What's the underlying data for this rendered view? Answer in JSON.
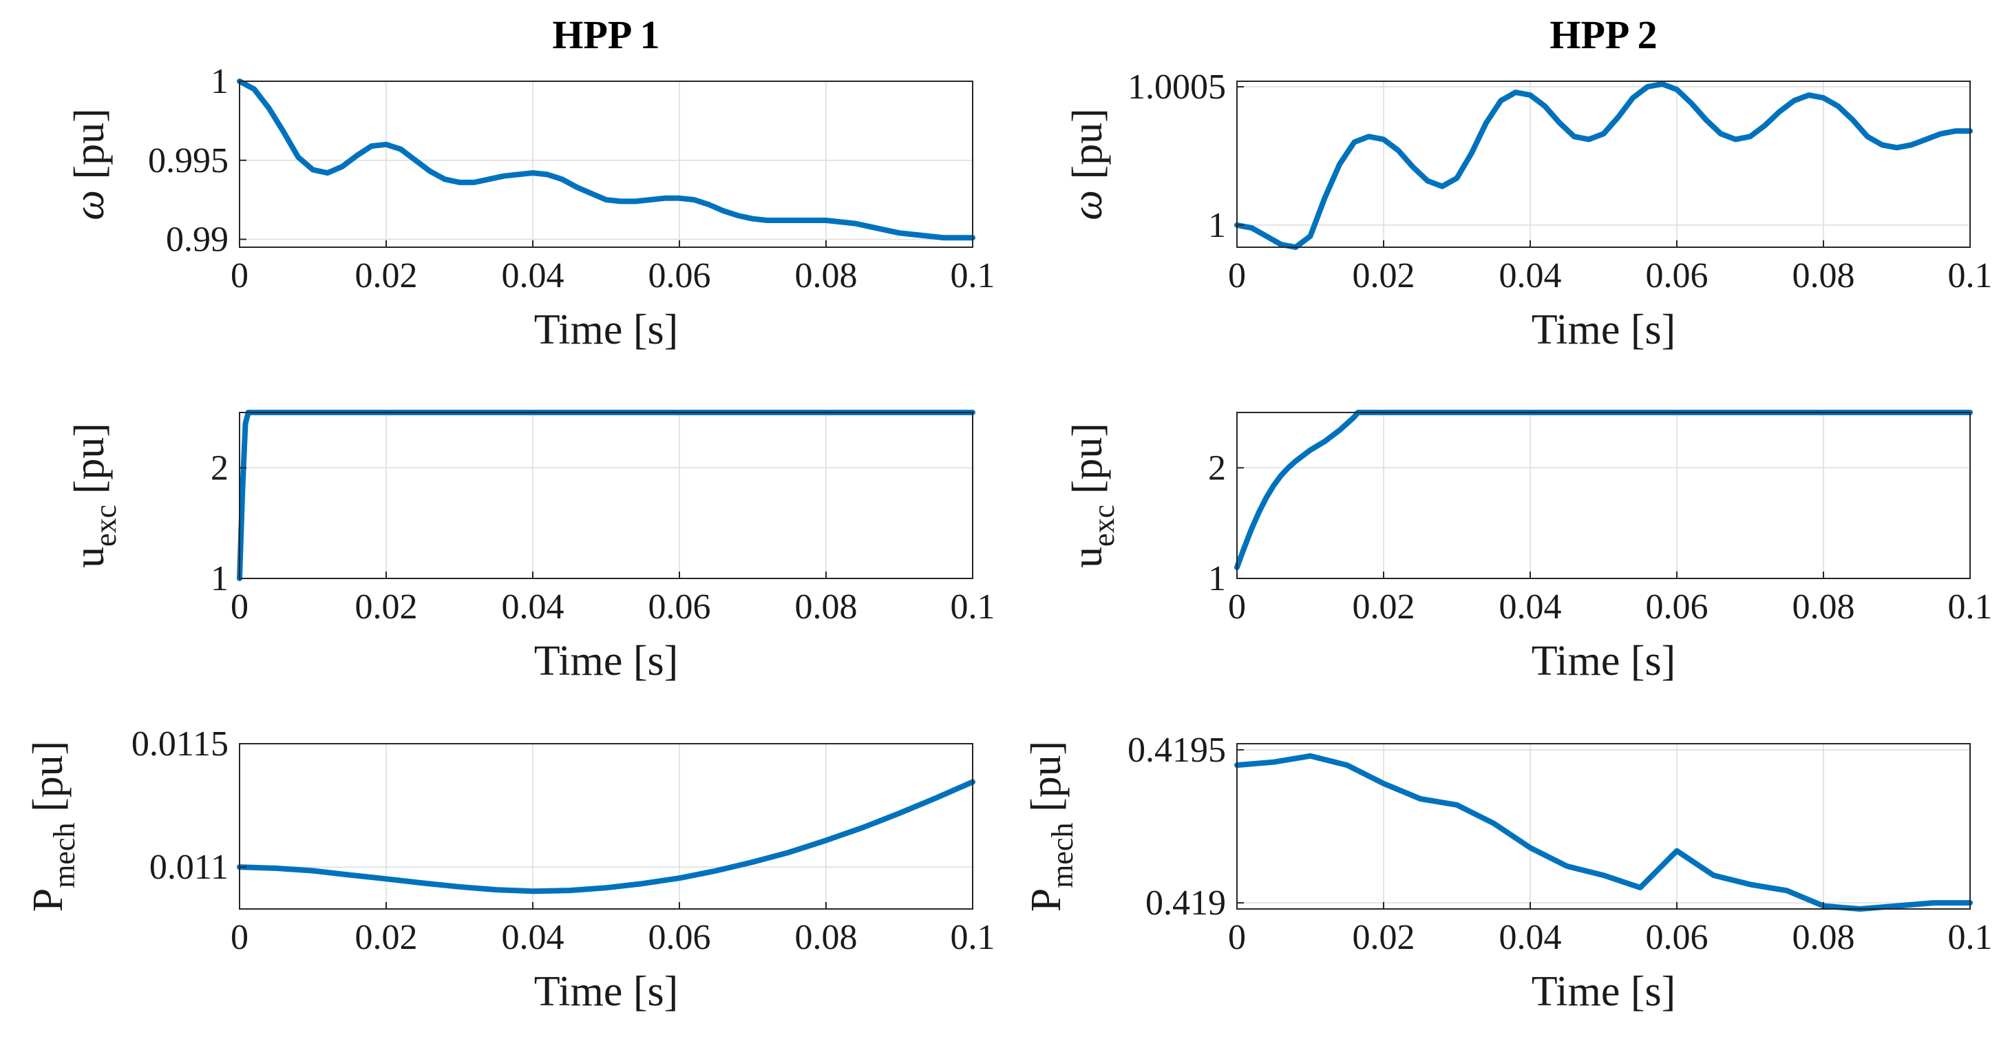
{
  "chart_data": [
    {
      "id": "hpp1-omega",
      "type": "line",
      "title": "HPP 1",
      "xlabel": "Time [s]",
      "ylabel": "ω [pu]",
      "xlim": [
        0,
        0.1
      ],
      "ylim": [
        0.9895,
        1.0
      ],
      "xticks": [
        0,
        0.02,
        0.04,
        0.06,
        0.08,
        0.1
      ],
      "xtick_labels": [
        "0",
        "0.02",
        "0.04",
        "0.06",
        "0.08",
        "0.1"
      ],
      "yticks": [
        0.99,
        0.995,
        1.0
      ],
      "ytick_labels": [
        "0.99",
        "0.995",
        "1"
      ],
      "grid": true,
      "series": [
        {
          "name": "omega",
          "color": "#0072BD",
          "x": [
            0,
            0.002,
            0.004,
            0.006,
            0.008,
            0.01,
            0.012,
            0.014,
            0.016,
            0.018,
            0.02,
            0.022,
            0.024,
            0.026,
            0.028,
            0.03,
            0.032,
            0.034,
            0.036,
            0.038,
            0.04,
            0.042,
            0.044,
            0.046,
            0.048,
            0.05,
            0.052,
            0.054,
            0.056,
            0.058,
            0.06,
            0.062,
            0.064,
            0.066,
            0.068,
            0.07,
            0.072,
            0.074,
            0.076,
            0.078,
            0.08,
            0.082,
            0.084,
            0.086,
            0.088,
            0.09,
            0.092,
            0.094,
            0.096,
            0.098,
            0.1
          ],
          "y": [
            1.0,
            0.9995,
            0.9983,
            0.9968,
            0.9952,
            0.9944,
            0.9942,
            0.9946,
            0.9953,
            0.9959,
            0.996,
            0.9957,
            0.995,
            0.9943,
            0.9938,
            0.9936,
            0.9936,
            0.9938,
            0.994,
            0.9941,
            0.9942,
            0.9941,
            0.9938,
            0.9933,
            0.9929,
            0.9925,
            0.9924,
            0.9924,
            0.9925,
            0.9926,
            0.9926,
            0.9925,
            0.9922,
            0.9918,
            0.9915,
            0.9913,
            0.9912,
            0.9912,
            0.9912,
            0.9912,
            0.9912,
            0.9911,
            0.991,
            0.9908,
            0.9906,
            0.9904,
            0.9903,
            0.9902,
            0.9901,
            0.9901,
            0.9901
          ]
        }
      ]
    },
    {
      "id": "hpp2-omega",
      "type": "line",
      "title": "HPP 2",
      "xlabel": "Time [s]",
      "ylabel": "ω [pu]",
      "xlim": [
        0,
        0.1
      ],
      "ylim": [
        0.99992,
        1.00052
      ],
      "xticks": [
        0,
        0.02,
        0.04,
        0.06,
        0.08,
        0.1
      ],
      "xtick_labels": [
        "0",
        "0.02",
        "0.04",
        "0.06",
        "0.08",
        "0.1"
      ],
      "yticks": [
        1.0,
        1.0005
      ],
      "ytick_labels": [
        "1",
        "1.0005"
      ],
      "grid": true,
      "series": [
        {
          "name": "omega",
          "color": "#0072BD",
          "x": [
            0,
            0.002,
            0.004,
            0.006,
            0.008,
            0.01,
            0.012,
            0.014,
            0.016,
            0.018,
            0.02,
            0.022,
            0.024,
            0.026,
            0.028,
            0.03,
            0.032,
            0.034,
            0.036,
            0.038,
            0.04,
            0.042,
            0.044,
            0.046,
            0.048,
            0.05,
            0.052,
            0.054,
            0.056,
            0.058,
            0.06,
            0.062,
            0.064,
            0.066,
            0.068,
            0.07,
            0.072,
            0.074,
            0.076,
            0.078,
            0.08,
            0.082,
            0.084,
            0.086,
            0.088,
            0.09,
            0.092,
            0.094,
            0.096,
            0.098,
            0.1
          ],
          "y": [
            1.0,
            0.99999,
            0.99996,
            0.99993,
            0.99992,
            0.99996,
            1.0001,
            1.00022,
            1.0003,
            1.00032,
            1.00031,
            1.00027,
            1.00021,
            1.00016,
            1.00014,
            1.00017,
            1.00026,
            1.00037,
            1.00045,
            1.00048,
            1.00047,
            1.00043,
            1.00037,
            1.00032,
            1.00031,
            1.00033,
            1.00039,
            1.00046,
            1.0005,
            1.00051,
            1.00049,
            1.00044,
            1.00038,
            1.00033,
            1.00031,
            1.00032,
            1.00036,
            1.00041,
            1.00045,
            1.00047,
            1.00046,
            1.00043,
            1.00038,
            1.00032,
            1.00029,
            1.00028,
            1.00029,
            1.00031,
            1.00033,
            1.00034,
            1.00034
          ]
        }
      ]
    },
    {
      "id": "hpp1-uexc",
      "type": "line",
      "title": "",
      "xlabel": "Time [s]",
      "ylabel_main": "u",
      "ylabel_sub": "exc",
      "ylabel_unit": "[pu]",
      "xlim": [
        0,
        0.1
      ],
      "ylim": [
        1.0,
        2.5
      ],
      "xticks": [
        0,
        0.02,
        0.04,
        0.06,
        0.08,
        0.1
      ],
      "xtick_labels": [
        "0",
        "0.02",
        "0.04",
        "0.06",
        "0.08",
        "0.1"
      ],
      "yticks": [
        1,
        2
      ],
      "ytick_labels": [
        "1",
        "2"
      ],
      "grid": true,
      "series": [
        {
          "name": "u_exc",
          "color": "#0072BD",
          "x": [
            0,
            0.0004,
            0.0008,
            0.0012,
            0.005,
            0.02,
            0.04,
            0.06,
            0.08,
            0.1
          ],
          "y": [
            1.0,
            1.8,
            2.4,
            2.5,
            2.5,
            2.5,
            2.5,
            2.5,
            2.5,
            2.5
          ]
        }
      ]
    },
    {
      "id": "hpp2-uexc",
      "type": "line",
      "title": "",
      "xlabel": "Time [s]",
      "ylabel_main": "u",
      "ylabel_sub": "exc",
      "ylabel_unit": "[pu]",
      "xlim": [
        0,
        0.1
      ],
      "ylim": [
        1.0,
        2.5
      ],
      "xticks": [
        0,
        0.02,
        0.04,
        0.06,
        0.08,
        0.1
      ],
      "xtick_labels": [
        "0",
        "0.02",
        "0.04",
        "0.06",
        "0.08",
        "0.1"
      ],
      "yticks": [
        1,
        2
      ],
      "ytick_labels": [
        "1",
        "2"
      ],
      "grid": true,
      "series": [
        {
          "name": "u_exc",
          "color": "#0072BD",
          "x": [
            0,
            0.001,
            0.002,
            0.003,
            0.004,
            0.005,
            0.006,
            0.007,
            0.008,
            0.009,
            0.01,
            0.011,
            0.012,
            0.013,
            0.014,
            0.015,
            0.016,
            0.0165,
            0.02,
            0.04,
            0.06,
            0.08,
            0.1
          ],
          "y": [
            1.1,
            1.28,
            1.45,
            1.6,
            1.73,
            1.84,
            1.93,
            2.0,
            2.06,
            2.11,
            2.16,
            2.2,
            2.24,
            2.29,
            2.34,
            2.4,
            2.46,
            2.5,
            2.5,
            2.5,
            2.5,
            2.5,
            2.5
          ]
        }
      ]
    },
    {
      "id": "hpp1-pmech",
      "type": "line",
      "title": "",
      "xlabel": "Time [s]",
      "ylabel_main": "P",
      "ylabel_sub": "mech",
      "ylabel_unit": "[pu]",
      "xlim": [
        0,
        0.1
      ],
      "ylim": [
        0.01083,
        0.0115
      ],
      "xticks": [
        0,
        0.02,
        0.04,
        0.06,
        0.08,
        0.1
      ],
      "xtick_labels": [
        "0",
        "0.02",
        "0.04",
        "0.06",
        "0.08",
        "0.1"
      ],
      "yticks": [
        0.011,
        0.0115
      ],
      "ytick_labels": [
        "0.011",
        "0.0115"
      ],
      "grid": true,
      "series": [
        {
          "name": "P_mech",
          "color": "#0072BD",
          "x": [
            0,
            0.005,
            0.01,
            0.015,
            0.02,
            0.025,
            0.03,
            0.035,
            0.04,
            0.045,
            0.05,
            0.055,
            0.06,
            0.065,
            0.07,
            0.075,
            0.08,
            0.085,
            0.09,
            0.095,
            0.1
          ],
          "y": [
            0.011,
            0.010995,
            0.010985,
            0.010968,
            0.010952,
            0.010935,
            0.01092,
            0.010908,
            0.010902,
            0.010905,
            0.010916,
            0.010933,
            0.010955,
            0.010985,
            0.01102,
            0.01106,
            0.011108,
            0.01116,
            0.011218,
            0.01128,
            0.011345
          ]
        }
      ]
    },
    {
      "id": "hpp2-pmech",
      "type": "line",
      "title": "",
      "xlabel": "Time [s]",
      "ylabel_main": "P",
      "ylabel_sub": "mech",
      "ylabel_unit": "[pu]",
      "xlim": [
        0,
        0.1
      ],
      "ylim": [
        0.41898,
        0.41952
      ],
      "xticks": [
        0,
        0.02,
        0.04,
        0.06,
        0.08,
        0.1
      ],
      "xtick_labels": [
        "0",
        "0.02",
        "0.04",
        "0.06",
        "0.08",
        "0.1"
      ],
      "yticks": [
        0.419,
        0.4195
      ],
      "ytick_labels": [
        "0.419",
        "0.4195"
      ],
      "grid": true,
      "series": [
        {
          "name": "P_mech",
          "color": "#0072BD",
          "x": [
            0,
            0.005,
            0.01,
            0.015,
            0.02,
            0.025,
            0.03,
            0.035,
            0.04,
            0.045,
            0.05,
            0.055,
            0.06,
            0.065,
            0.07,
            0.075,
            0.08,
            0.085,
            0.09,
            0.095,
            0.1
          ],
          "y": [
            0.41945,
            0.41946,
            0.41948,
            0.41945,
            0.41939,
            0.41934,
            0.41932,
            0.41926,
            0.41918,
            0.41912,
            0.41909,
            0.41905,
            0.41917,
            0.41909,
            0.41906,
            0.41904,
            0.41899,
            0.41898,
            0.41899,
            0.419,
            0.419
          ]
        }
      ]
    }
  ]
}
